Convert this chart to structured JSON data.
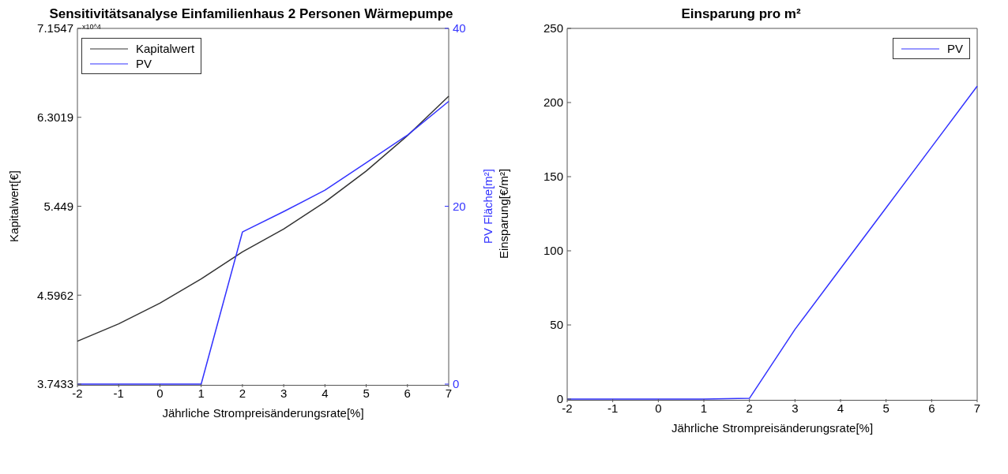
{
  "chart_data": [
    {
      "type": "line",
      "title": "Sensitivitätsanalyse Einfamilienhaus 2 Personen Wärmepumpe",
      "xlabel": "Jährliche Strompreisänderungsrate[%]",
      "ylabel": "Kapitalwert[€]",
      "y2label": "PV Fläche[m²]",
      "annotations": [
        "x10^4"
      ],
      "x": [
        -2,
        -1,
        0,
        1,
        2,
        3,
        4,
        5,
        6,
        7
      ],
      "series": [
        {
          "name": "Kapitalwert",
          "color": "#333333",
          "values": [
            4.155,
            4.321,
            4.52,
            4.752,
            5.011,
            5.23,
            5.489,
            5.787,
            6.126,
            6.504
          ]
        },
        {
          "name": "PV",
          "color": "#3333ff",
          "axis": "y2",
          "values": [
            0,
            0,
            0,
            0,
            17.1,
            19.4,
            21.8,
            24.9,
            28.0,
            31.8
          ]
        }
      ],
      "xlim": [
        -2,
        7
      ],
      "xticks": [
        -2,
        -1,
        0,
        1,
        2,
        3,
        4,
        5,
        6,
        7
      ],
      "ylim": [
        3.7433,
        7.1547
      ],
      "yticks": [
        3.7433,
        4.5962,
        5.449,
        6.3019,
        7.1547
      ],
      "y2lim": [
        0,
        40
      ],
      "y2ticks": [
        0,
        20,
        40
      ],
      "legend": "top left",
      "grid": false
    },
    {
      "type": "line",
      "title": "Einsparung pro m²",
      "xlabel": "Jährliche Strompreisänderungsrate[%]",
      "ylabel": "Einsparung[€/m²]",
      "x": [
        -2,
        -1,
        0,
        1,
        2,
        3,
        4,
        5,
        6,
        7
      ],
      "series": [
        {
          "name": "PV",
          "color": "#3333ff",
          "values": [
            0,
            0,
            0,
            0,
            0.5,
            47,
            88,
            129,
            170,
            211
          ]
        }
      ],
      "xlim": [
        -2,
        7
      ],
      "xticks": [
        -2,
        -1,
        0,
        1,
        2,
        3,
        4,
        5,
        6,
        7
      ],
      "ylim": [
        0,
        250
      ],
      "yticks": [
        0,
        50,
        100,
        150,
        200,
        250
      ],
      "legend": "top right",
      "grid": false
    }
  ]
}
